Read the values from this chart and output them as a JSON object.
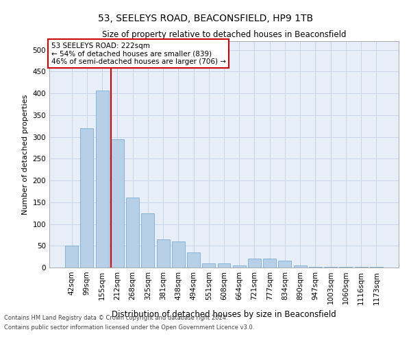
{
  "title1": "53, SEELEYS ROAD, BEACONSFIELD, HP9 1TB",
  "title2": "Size of property relative to detached houses in Beaconsfield",
  "xlabel": "Distribution of detached houses by size in Beaconsfield",
  "ylabel": "Number of detached properties",
  "categories": [
    "42sqm",
    "99sqm",
    "155sqm",
    "212sqm",
    "268sqm",
    "325sqm",
    "381sqm",
    "438sqm",
    "494sqm",
    "551sqm",
    "608sqm",
    "664sqm",
    "721sqm",
    "777sqm",
    "834sqm",
    "890sqm",
    "947sqm",
    "1003sqm",
    "1060sqm",
    "1116sqm",
    "1173sqm"
  ],
  "values": [
    50,
    320,
    407,
    295,
    160,
    125,
    65,
    60,
    35,
    10,
    10,
    5,
    20,
    20,
    15,
    5,
    2,
    2,
    2,
    2,
    2
  ],
  "bar_color": "#b8cfe8",
  "bar_edge_color": "#7aadd4",
  "grid_color": "#c8d4e8",
  "background_color": "#e8eef8",
  "annotation_text": "53 SEELEYS ROAD: 222sqm\n← 54% of detached houses are smaller (839)\n46% of semi-detached houses are larger (706) →",
  "vline_x_bar_index": 2.58,
  "vline_color": "#cc0000",
  "annotation_box_color": "#ffffff",
  "annotation_box_edge": "#cc0000",
  "footer1": "Contains HM Land Registry data © Crown copyright and database right 2024.",
  "footer2": "Contains public sector information licensed under the Open Government Licence v3.0.",
  "ylim": [
    0,
    520
  ],
  "yticks": [
    0,
    50,
    100,
    150,
    200,
    250,
    300,
    350,
    400,
    450,
    500
  ],
  "title1_fontsize": 10,
  "title2_fontsize": 8.5,
  "ylabel_fontsize": 8,
  "xlabel_fontsize": 8.5,
  "tick_fontsize": 7.5,
  "annot_fontsize": 7.5
}
